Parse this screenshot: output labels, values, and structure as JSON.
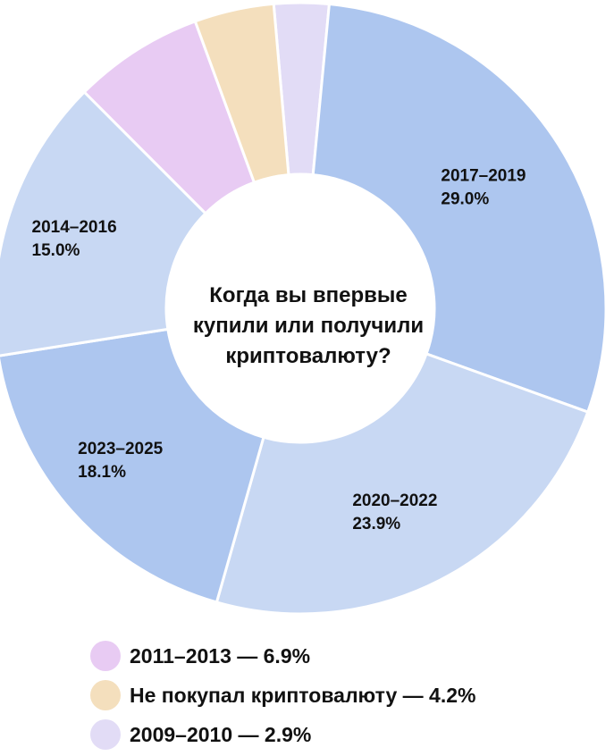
{
  "chart_data": {
    "type": "pie",
    "title_lines": [
      "Когда вы впервые",
      "купили или получили",
      "криптовалюту?"
    ],
    "slices": [
      {
        "name": "2009–2010",
        "value": 2.9,
        "pct_label": "2.9%",
        "color": "#e2dcf6",
        "labeled": false
      },
      {
        "name": "2017–2019",
        "value": 29.0,
        "pct_label": "29.0%",
        "color": "#adc6ef",
        "labeled": true
      },
      {
        "name": "2020–2022",
        "value": 23.9,
        "pct_label": "23.9%",
        "color": "#c8d8f3",
        "labeled": true
      },
      {
        "name": "2023–2025",
        "value": 18.1,
        "pct_label": "18.1%",
        "color": "#adc6ef",
        "labeled": true
      },
      {
        "name": "2014–2016",
        "value": 15.0,
        "pct_label": "15.0%",
        "color": "#c8d8f3",
        "labeled": true
      },
      {
        "name": "2011–2013",
        "value": 6.9,
        "pct_label": "6.9%",
        "color": "#e8cbf3",
        "labeled": false
      },
      {
        "name": "Не покупал криптовалюту",
        "value": 4.2,
        "pct_label": "4.2%",
        "color": "#f4dfbd",
        "labeled": false
      }
    ],
    "legend": [
      {
        "text": "2011–2013 — 6.9%",
        "color": "#e8cbf3"
      },
      {
        "text": "Не покупал криптовалюту — 4.2%",
        "color": "#f4dfbd"
      },
      {
        "text": "2009–2010 — 2.9%",
        "color": "#e2dcf6"
      }
    ]
  }
}
